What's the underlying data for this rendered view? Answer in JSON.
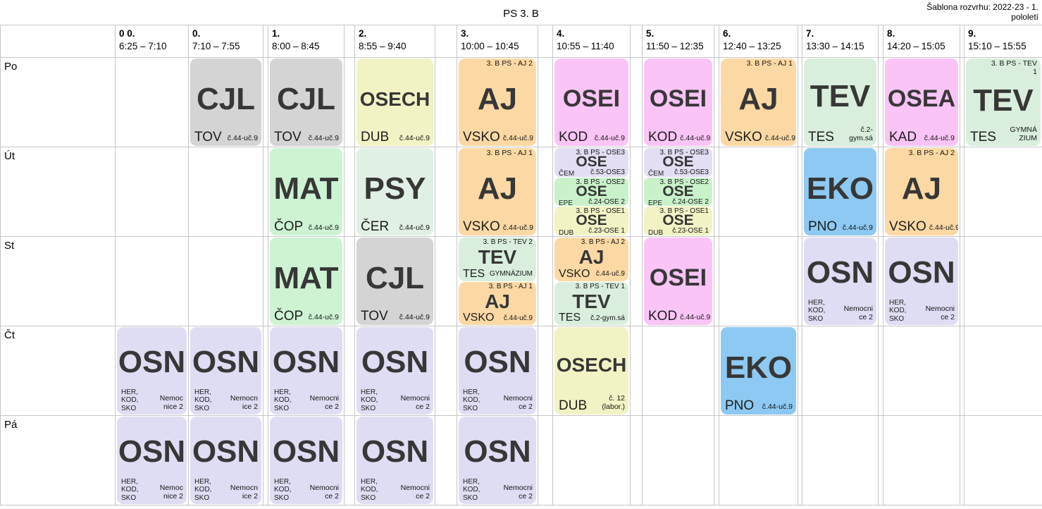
{
  "header": {
    "title": "PS 3. B",
    "template_line1": "Šablona rozvrhu: 2022-23 - 1.",
    "template_line2": "pololetí"
  },
  "days": [
    {
      "label": "Po"
    },
    {
      "label": "Út"
    },
    {
      "label": "St"
    },
    {
      "label": "Čt"
    },
    {
      "label": "Pá"
    }
  ],
  "periods": [
    {
      "num": "0 0.",
      "time": "6:25 – 7:10"
    },
    {
      "num": "0.",
      "time": "7:10 – 7:55"
    },
    {
      "num": "1.",
      "time": "8:00 – 8:45"
    },
    {
      "num": "2.",
      "time": "8:55 – 9:40"
    },
    {
      "num": "3.",
      "time": "10:00 – 10:45"
    },
    {
      "num": "4.",
      "time": "10:55 – 11:40"
    },
    {
      "num": "5.",
      "time": "11:50 – 12:35"
    },
    {
      "num": "6.",
      "time": "12:40 – 13:25"
    },
    {
      "num": "7.",
      "time": "13:30 – 14:15"
    },
    {
      "num": "8.",
      "time": "14:20 – 15:05"
    },
    {
      "num": "9.",
      "time": "15:10 – 15:55"
    }
  ],
  "colors": {
    "gray": "#d4d4d4",
    "yellow": "#f2f3c5",
    "orange": "#fcd9a4",
    "pink": "#fbc4f7",
    "mint": "#d9eedd",
    "green": "#cdf3d3",
    "palemint": "#e0f0e4",
    "blue": "#8dc9f2",
    "lavender": "#dfddf3",
    "ose2green": "#c9f2ca",
    "ose3lavender": "#e4def4",
    "ose1yellow": "#f2f3c5"
  },
  "lessons": [
    {
      "day": 0,
      "period": 1,
      "cards": [
        {
          "subject": "CJL",
          "teacher": "TOV",
          "room": "č.44-uč.9",
          "group": "",
          "color": "gray",
          "size": "full"
        }
      ]
    },
    {
      "day": 0,
      "period": 2,
      "cards": [
        {
          "subject": "CJL",
          "teacher": "TOV",
          "room": "č.44-uč.9",
          "group": "",
          "color": "gray",
          "size": "full"
        }
      ]
    },
    {
      "day": 0,
      "period": 3,
      "cards": [
        {
          "subject": "OSECH",
          "teacher": "DUB",
          "room": "č.44-uč.9",
          "group": "",
          "color": "yellow",
          "size": "full"
        }
      ]
    },
    {
      "day": 0,
      "period": 4,
      "cards": [
        {
          "subject": "AJ",
          "teacher": "VSKO",
          "room": "č.44-uč.9",
          "group": "3. B PS - AJ 2",
          "color": "orange",
          "size": "full"
        }
      ]
    },
    {
      "day": 0,
      "period": 5,
      "cards": [
        {
          "subject": "OSEI",
          "teacher": "KOD",
          "room": "č.44-uč.9",
          "group": "",
          "color": "pink",
          "size": "full"
        }
      ]
    },
    {
      "day": 0,
      "period": 6,
      "cards": [
        {
          "subject": "OSEI",
          "teacher": "KOD",
          "room": "č.44-uč.9",
          "group": "",
          "color": "pink",
          "size": "full"
        }
      ]
    },
    {
      "day": 0,
      "period": 7,
      "cards": [
        {
          "subject": "AJ",
          "teacher": "VSKO",
          "room": "č.44-uč.9",
          "group": "3. B PS - AJ 1",
          "color": "orange",
          "size": "full"
        }
      ]
    },
    {
      "day": 0,
      "period": 8,
      "cards": [
        {
          "subject": "TEV",
          "teacher": "TES",
          "room": "č.2-gym.sá",
          "group": "",
          "color": "mint",
          "size": "full",
          "wrap": true
        }
      ]
    },
    {
      "day": 0,
      "period": 9,
      "cards": [
        {
          "subject": "OSEA",
          "teacher": "KAD",
          "room": "č.44-uč.9",
          "group": "",
          "color": "pink",
          "size": "full"
        }
      ]
    },
    {
      "day": 0,
      "period": 10,
      "cards": [
        {
          "subject": "TEV",
          "teacher": "TES",
          "room": "GYMNÁZIUM",
          "group": "3. B PS - TEV 1",
          "color": "mint",
          "size": "full",
          "wrap": true,
          "group_wrap": true
        }
      ]
    },
    {
      "day": 1,
      "period": 2,
      "cards": [
        {
          "subject": "MAT",
          "teacher": "ČOP",
          "room": "č.44-uč.9",
          "group": "",
          "color": "green",
          "size": "full"
        }
      ]
    },
    {
      "day": 1,
      "period": 3,
      "cards": [
        {
          "subject": "PSY",
          "teacher": "ČER",
          "room": "č.44-uč.9",
          "group": "",
          "color": "palemint",
          "size": "full"
        }
      ]
    },
    {
      "day": 1,
      "period": 4,
      "cards": [
        {
          "subject": "AJ",
          "teacher": "VSKO",
          "room": "č.44-uč.9",
          "group": "3. B PS - AJ 1",
          "color": "orange",
          "size": "full"
        }
      ]
    },
    {
      "day": 1,
      "period": 5,
      "cards": [
        {
          "subject": "OSE",
          "teacher": "ČEM",
          "room": "č.53-OSE3",
          "group": "3. B PS - OSE3",
          "color": "ose3lavender",
          "size": "third"
        },
        {
          "subject": "OSE",
          "teacher": "EPE",
          "room": "č.24-OSE 2",
          "group": "3. B PS - OSE2",
          "color": "ose2green",
          "size": "third"
        },
        {
          "subject": "OSE",
          "teacher": "DUB",
          "room": "č.23-OSE 1",
          "group": "3. B PS - OSE1",
          "color": "ose1yellow",
          "size": "third"
        }
      ]
    },
    {
      "day": 1,
      "period": 6,
      "cards": [
        {
          "subject": "OSE",
          "teacher": "ČEM",
          "room": "č.53-OSE3",
          "group": "3. B PS - OSE3",
          "color": "ose3lavender",
          "size": "third"
        },
        {
          "subject": "OSE",
          "teacher": "EPE",
          "room": "č.24-OSE 2",
          "group": "3. B PS - OSE2",
          "color": "ose2green",
          "size": "third"
        },
        {
          "subject": "OSE",
          "teacher": "DUB",
          "room": "č.23-OSE 1",
          "group": "3. B PS - OSE1",
          "color": "ose1yellow",
          "size": "third"
        }
      ]
    },
    {
      "day": 1,
      "period": 8,
      "cards": [
        {
          "subject": "EKO",
          "teacher": "PNO",
          "room": "č.44-uč.9",
          "group": "",
          "color": "blue",
          "size": "full"
        }
      ]
    },
    {
      "day": 1,
      "period": 9,
      "cards": [
        {
          "subject": "AJ",
          "teacher": "VSKO",
          "room": "č.44-uč.9",
          "group": "3. B PS - AJ 2",
          "color": "orange",
          "size": "full"
        }
      ]
    },
    {
      "day": 2,
      "period": 2,
      "cards": [
        {
          "subject": "MAT",
          "teacher": "ČOP",
          "room": "č.44-uč.9",
          "group": "",
          "color": "green",
          "size": "full"
        }
      ]
    },
    {
      "day": 2,
      "period": 3,
      "cards": [
        {
          "subject": "CJL",
          "teacher": "TOV",
          "room": "č.44-uč.9",
          "group": "",
          "color": "gray",
          "size": "full"
        }
      ]
    },
    {
      "day": 2,
      "period": 4,
      "cards": [
        {
          "subject": "TEV",
          "teacher": "TES",
          "room": "GYMNÁZIUM",
          "group": "3. B PS - TEV 2",
          "color": "mint",
          "size": "half"
        },
        {
          "subject": "AJ",
          "teacher": "VSKO",
          "room": "č.44-uč.9",
          "group": "3. B PS - AJ 1",
          "color": "orange",
          "size": "half"
        }
      ]
    },
    {
      "day": 2,
      "period": 5,
      "cards": [
        {
          "subject": "AJ",
          "teacher": "VSKO",
          "room": "č.44-uč.9",
          "group": "3. B PS - AJ 2",
          "color": "orange",
          "size": "half"
        },
        {
          "subject": "TEV",
          "teacher": "TES",
          "room": "č.2-gym.sá",
          "group": "3. B PS - TEV 1",
          "color": "mint",
          "size": "half"
        }
      ]
    },
    {
      "day": 2,
      "period": 6,
      "cards": [
        {
          "subject": "OSEI",
          "teacher": "KOD",
          "room": "č.44-uč.9",
          "group": "",
          "color": "pink",
          "size": "full"
        }
      ]
    },
    {
      "day": 2,
      "period": 8,
      "cards": [
        {
          "subject": "OSN",
          "teacher": "HER, KOD, SKO",
          "room": "Nemocnice 2",
          "group": "",
          "color": "lavender",
          "size": "full",
          "wrap": true
        }
      ]
    },
    {
      "day": 2,
      "period": 9,
      "cards": [
        {
          "subject": "OSN",
          "teacher": "HER, KOD, SKO",
          "room": "Nemocnice 2",
          "group": "",
          "color": "lavender",
          "size": "full",
          "wrap": true
        }
      ]
    },
    {
      "day": 3,
      "period": 0,
      "cards": [
        {
          "subject": "OSN",
          "teacher": "HER, KOD, SKO",
          "room": "Nemocnice 2",
          "group": "",
          "color": "lavender",
          "size": "full",
          "wrap": true
        }
      ]
    },
    {
      "day": 3,
      "period": 1,
      "cards": [
        {
          "subject": "OSN",
          "teacher": "HER, KOD, SKO",
          "room": "Nemocnice 2",
          "group": "",
          "color": "lavender",
          "size": "full",
          "wrap": true
        }
      ]
    },
    {
      "day": 3,
      "period": 2,
      "cards": [
        {
          "subject": "OSN",
          "teacher": "HER, KOD, SKO",
          "room": "Nemocnice 2",
          "group": "",
          "color": "lavender",
          "size": "full",
          "wrap": true
        }
      ]
    },
    {
      "day": 3,
      "period": 3,
      "cards": [
        {
          "subject": "OSN",
          "teacher": "HER, KOD, SKO",
          "room": "Nemocnice 2",
          "group": "",
          "color": "lavender",
          "size": "full",
          "wrap": true
        }
      ]
    },
    {
      "day": 3,
      "period": 4,
      "cards": [
        {
          "subject": "OSN",
          "teacher": "HER, KOD, SKO",
          "room": "Nemocnice 2",
          "group": "",
          "color": "lavender",
          "size": "full",
          "wrap": true
        }
      ]
    },
    {
      "day": 3,
      "period": 5,
      "cards": [
        {
          "subject": "OSECH",
          "teacher": "DUB",
          "room": "č. 12 (labor.)",
          "group": "",
          "color": "yellow",
          "size": "full",
          "wrap": true
        }
      ]
    },
    {
      "day": 3,
      "period": 7,
      "cards": [
        {
          "subject": "EKO",
          "teacher": "PNO",
          "room": "č.44-uč.9",
          "group": "",
          "color": "blue",
          "size": "full"
        }
      ]
    },
    {
      "day": 4,
      "period": 0,
      "cards": [
        {
          "subject": "OSN",
          "teacher": "HER, KOD, SKO",
          "room": "Nemocnice 2",
          "group": "",
          "color": "lavender",
          "size": "full",
          "wrap": true
        }
      ]
    },
    {
      "day": 4,
      "period": 1,
      "cards": [
        {
          "subject": "OSN",
          "teacher": "HER, KOD, SKO",
          "room": "Nemocnice 2",
          "group": "",
          "color": "lavender",
          "size": "full",
          "wrap": true
        }
      ]
    },
    {
      "day": 4,
      "period": 2,
      "cards": [
        {
          "subject": "OSN",
          "teacher": "HER, KOD, SKO",
          "room": "Nemocnice 2",
          "group": "",
          "color": "lavender",
          "size": "full",
          "wrap": true
        }
      ]
    },
    {
      "day": 4,
      "period": 3,
      "cards": [
        {
          "subject": "OSN",
          "teacher": "HER, KOD, SKO",
          "room": "Nemocnice 2",
          "group": "",
          "color": "lavender",
          "size": "full",
          "wrap": true
        }
      ]
    },
    {
      "day": 4,
      "period": 4,
      "cards": [
        {
          "subject": "OSN",
          "teacher": "HER, KOD, SKO",
          "room": "Nemocnice 2",
          "group": "",
          "color": "lavender",
          "size": "full",
          "wrap": true
        }
      ]
    }
  ]
}
